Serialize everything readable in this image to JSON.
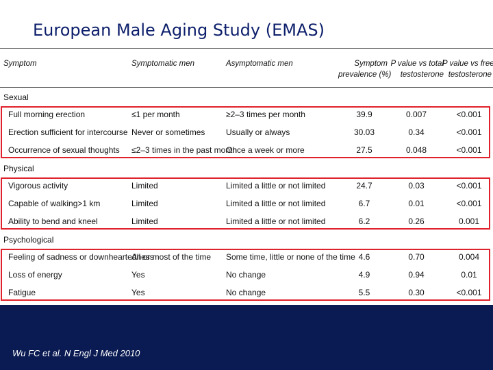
{
  "slide": {
    "title": "European Male Aging Study (EMAS)",
    "citation": "Wu FC et al. N Engl J Med 2010"
  },
  "table": {
    "headers": {
      "symptom": "Symptom",
      "symptomatic": "Symptomatic men",
      "asymptomatic": "Asymptomatic men",
      "prevalence_1": "Symptom",
      "prevalence_2": "prevalence (%)",
      "p_total_1": "P value vs total",
      "p_total_2": "testosterone",
      "p_free_1": "P value vs free",
      "p_free_2": "testosterone"
    },
    "groups": [
      {
        "name": "Sexual",
        "rows": [
          {
            "symptom": "Full morning erection",
            "symptomatic": "≤1 per month",
            "asymptomatic": "≥2–3 times per month",
            "prevalence": "39.9",
            "p_total": "0.007",
            "p_free": "<0.001"
          },
          {
            "symptom": "Erection sufficient for intercourse",
            "symptomatic": "Never or sometimes",
            "asymptomatic": "Usually or always",
            "prevalence": "30.03",
            "p_total": "0.34",
            "p_free": "<0.001"
          },
          {
            "symptom": "Occurrence of sexual thoughts",
            "symptomatic": "≤2–3 times in the past month",
            "asymptomatic": "Once a week or more",
            "prevalence": "27.5",
            "p_total": "0.048",
            "p_free": "<0.001"
          }
        ]
      },
      {
        "name": "Physical",
        "rows": [
          {
            "symptom": "Vigorous activity",
            "symptomatic": "Limited",
            "asymptomatic": "Limited a little or not limited",
            "prevalence": "24.7",
            "p_total": "0.03",
            "p_free": "<0.001"
          },
          {
            "symptom": "Capable of walking>1 km",
            "symptomatic": "Limited",
            "asymptomatic": "Limited a little or not limited",
            "prevalence": "6.7",
            "p_total": "0.01",
            "p_free": "<0.001"
          },
          {
            "symptom": "Ability to bend and kneel",
            "symptomatic": "Limited",
            "asymptomatic": "Limited a little or not limited",
            "prevalence": "6.2",
            "p_total": "0.26",
            "p_free": "0.001"
          }
        ]
      },
      {
        "name": "Psychological",
        "rows": [
          {
            "symptom": "Feeling of sadness or downheartedness",
            "symptomatic": "All or most of the time",
            "asymptomatic": "Some time, little or none of the time",
            "prevalence": "4.6",
            "p_total": "0.70",
            "p_free": "0.004"
          },
          {
            "symptom": "Loss of energy",
            "symptomatic": "Yes",
            "asymptomatic": "No change",
            "prevalence": "4.9",
            "p_total": "0.94",
            "p_free": "0.01"
          },
          {
            "symptom": "Fatigue",
            "symptomatic": "Yes",
            "asymptomatic": "No change",
            "prevalence": "5.5",
            "p_total": "0.30",
            "p_free": "<0.001"
          }
        ]
      }
    ]
  },
  "colors": {
    "background": "#0a1a52",
    "title_text": "#0d1f6b",
    "highlight_border": "#e0202a"
  }
}
